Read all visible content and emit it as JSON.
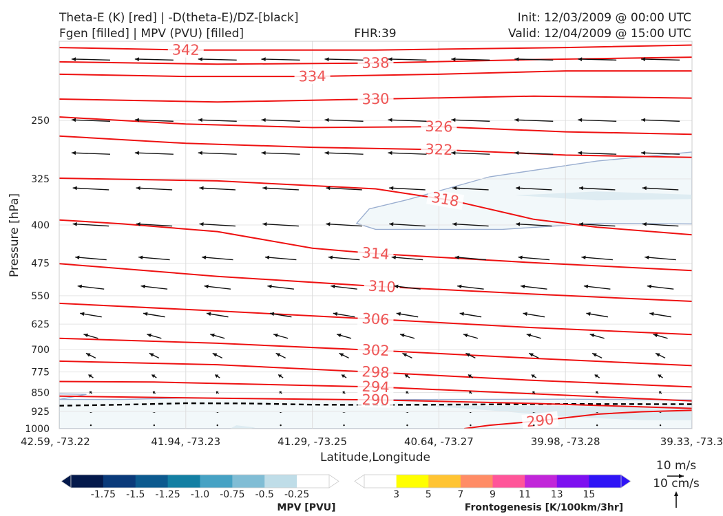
{
  "header": {
    "title_left_1": "Theta-E (K) [red] | -D(theta-E)/DZ-[black]",
    "title_left_2": "Fgen [filled] | MPV (PVU) [filled]",
    "fhr": "FHR:39",
    "init": "Init: 12/03/2009 @ 00:00 UTC",
    "valid": "Valid: 12/04/2009 @ 15:00 UTC"
  },
  "colors": {
    "theta_e": "#ee1111",
    "theta_e_label": "#ee5555",
    "mpv_outline": "#9aaed0",
    "mpv_fill_light": "#f2f8fa",
    "mpv_fill_mid": "#deecf2",
    "zero_line": "#000000",
    "wind": "#111111"
  },
  "chart_data": {
    "type": "cross-section",
    "xlabel": "Latitude,Longitude",
    "ylabel": "Pressure [hPa]",
    "x_ticks": [
      "42.59, -73.22",
      "41.94, -73.23",
      "41.29, -73.25",
      "40.64, -73.27",
      "39.98, -73.28",
      "39.33, -73.3"
    ],
    "y_ticks": [
      250,
      325,
      400,
      475,
      550,
      625,
      700,
      775,
      850,
      925,
      1000
    ],
    "ylim": [
      175,
      1000
    ],
    "y_scale": "log",
    "y_inverted": true,
    "grid": true,
    "x_gridlines_at_index": [
      1,
      2,
      3,
      4
    ],
    "theta_e_contours": [
      {
        "value": 342,
        "label": "342",
        "label_x": 0.2,
        "points": [
          [
            0,
            180
          ],
          [
            0.2,
            182
          ],
          [
            0.5,
            182
          ],
          [
            0.8,
            180
          ],
          [
            1.0,
            178
          ]
        ]
      },
      {
        "value": 338,
        "label": "338",
        "label_x": 0.5,
        "points": [
          [
            0,
            192
          ],
          [
            0.25,
            194
          ],
          [
            0.5,
            193
          ],
          [
            0.75,
            190
          ],
          [
            1.0,
            188
          ]
        ]
      },
      {
        "value": 334,
        "label": "334",
        "label_x": 0.4,
        "points": [
          [
            0,
            203
          ],
          [
            0.2,
            205
          ],
          [
            0.4,
            205
          ],
          [
            0.6,
            203
          ],
          [
            0.8,
            200
          ],
          [
            1.0,
            200
          ]
        ]
      },
      {
        "value": 330,
        "label": "330",
        "label_x": 0.5,
        "points": [
          [
            0,
            227
          ],
          [
            0.25,
            230
          ],
          [
            0.5,
            227
          ],
          [
            0.75,
            224
          ],
          [
            1.0,
            226
          ]
        ]
      },
      {
        "value": 326,
        "label": "326",
        "label_x": 0.6,
        "points": [
          [
            0,
            246
          ],
          [
            0.2,
            254
          ],
          [
            0.4,
            258
          ],
          [
            0.6,
            257
          ],
          [
            0.8,
            263
          ],
          [
            1.0,
            266
          ]
        ]
      },
      {
        "value": 322,
        "label": "322",
        "label_x": 0.6,
        "points": [
          [
            0,
            268
          ],
          [
            0.2,
            277
          ],
          [
            0.4,
            282
          ],
          [
            0.6,
            285
          ],
          [
            0.8,
            292
          ],
          [
            1.0,
            295
          ]
        ]
      },
      {
        "value": 318,
        "label": "318",
        "label_x": 0.61,
        "points": [
          [
            0,
            324
          ],
          [
            0.25,
            328
          ],
          [
            0.5,
            340
          ],
          [
            0.62,
            358
          ],
          [
            0.75,
            390
          ],
          [
            0.85,
            404
          ],
          [
            1.0,
            418
          ]
        ]
      },
      {
        "value": 314,
        "label": "314",
        "label_x": 0.5,
        "points": [
          [
            0,
            391
          ],
          [
            0.1,
            398
          ],
          [
            0.25,
            412
          ],
          [
            0.4,
            444
          ],
          [
            0.5,
            455
          ],
          [
            0.75,
            474
          ],
          [
            1.0,
            491
          ]
        ]
      },
      {
        "value": 310,
        "label": "310",
        "label_x": 0.51,
        "points": [
          [
            0,
            476
          ],
          [
            0.25,
            504
          ],
          [
            0.5,
            527
          ],
          [
            0.75,
            546
          ],
          [
            1.0,
            564
          ]
        ]
      },
      {
        "value": 306,
        "label": "306",
        "label_x": 0.5,
        "points": [
          [
            0,
            569
          ],
          [
            0.25,
            589
          ],
          [
            0.5,
            611
          ],
          [
            0.75,
            635
          ],
          [
            1.0,
            655
          ]
        ]
      },
      {
        "value": 302,
        "label": "302",
        "label_x": 0.5,
        "points": [
          [
            0,
            666
          ],
          [
            0.25,
            681
          ],
          [
            0.5,
            703
          ],
          [
            0.75,
            729
          ],
          [
            1.0,
            753
          ]
        ]
      },
      {
        "value": 298,
        "label": "298",
        "label_x": 0.5,
        "points": [
          [
            0,
            738
          ],
          [
            0.25,
            750
          ],
          [
            0.5,
            776
          ],
          [
            0.75,
            805
          ],
          [
            1.0,
            829
          ]
        ]
      },
      {
        "value": 294,
        "label": "294",
        "label_x": 0.5,
        "points": [
          [
            0,
            809
          ],
          [
            0.15,
            811
          ],
          [
            0.5,
            829
          ],
          [
            0.75,
            855
          ],
          [
            1.0,
            883
          ]
        ]
      },
      {
        "value": 290,
        "label": "290",
        "label_x": 0.5,
        "points": [
          [
            0,
            864
          ],
          [
            0.25,
            872
          ],
          [
            0.5,
            879
          ],
          [
            0.75,
            893
          ],
          [
            1.0,
            913
          ]
        ]
      },
      {
        "value": 290,
        "label": "290",
        "label_x": 0.76,
        "points": [
          [
            0.64,
            1000
          ],
          [
            0.68,
            985
          ],
          [
            0.75,
            968
          ],
          [
            0.85,
            937
          ],
          [
            0.92,
            927
          ],
          [
            1.0,
            921
          ]
        ]
      }
    ],
    "zero_line": {
      "style": "dashed",
      "points": [
        [
          0,
          902
        ],
        [
          0.1,
          898
        ],
        [
          0.2,
          892
        ],
        [
          0.3,
          893
        ],
        [
          0.4,
          898
        ],
        [
          0.5,
          899
        ],
        [
          0.6,
          898
        ],
        [
          0.8,
          895
        ],
        [
          1.0,
          896
        ]
      ]
    },
    "mpv_regions": [
      {
        "shade": "light",
        "points": [
          [
            0,
            855
          ],
          [
            0.043,
            857
          ],
          [
            0,
            877
          ],
          [
            0.1,
            877
          ],
          [
            0.2,
            871
          ],
          [
            0.3,
            873
          ],
          [
            0.4,
            877
          ],
          [
            0.5,
            878
          ],
          [
            0.6,
            877
          ],
          [
            0.8,
            876
          ],
          [
            1.0,
            879
          ],
          [
            1.0,
            1000
          ],
          [
            0,
            1000
          ]
        ]
      },
      {
        "shade": "mid",
        "points": [
          [
            0.58,
            902
          ],
          [
            0.7,
            902
          ],
          [
            0.85,
            903
          ],
          [
            1.0,
            905
          ],
          [
            1.0,
            963
          ],
          [
            0.92,
            963
          ],
          [
            0.78,
            945
          ],
          [
            0.7,
            925
          ]
        ]
      },
      {
        "shade": "light",
        "points": [
          [
            0.47,
            397
          ],
          [
            0.49,
            372
          ],
          [
            0.55,
            357
          ],
          [
            0.68,
            322
          ],
          [
            0.85,
            300
          ],
          [
            1.0,
            288
          ],
          [
            1.0,
            398
          ],
          [
            0.85,
            397
          ],
          [
            0.7,
            408
          ],
          [
            0.5,
            408
          ]
        ]
      },
      {
        "shade": "mid",
        "points": [
          [
            0.72,
            350
          ],
          [
            0.85,
            344
          ],
          [
            1.0,
            349
          ],
          [
            1.0,
            356
          ],
          [
            0.85,
            358
          ]
        ]
      },
      {
        "shade": "mid",
        "points": [
          [
            0.28,
            985
          ],
          [
            0.31,
            995
          ],
          [
            0.3,
            1000
          ],
          [
            0.27,
            1000
          ]
        ]
      }
    ],
    "wind_vectors": {
      "columns": [
        0.05,
        0.15,
        0.25,
        0.35,
        0.45,
        0.55,
        0.65,
        0.75,
        0.85,
        0.95
      ],
      "levels_hpa": [
        190,
        250,
        290,
        340,
        400,
        465,
        530,
        600,
        660,
        720,
        790,
        850,
        930,
        985
      ],
      "u_ms": [
        -16,
        -16,
        -16,
        -15,
        -15,
        -13,
        -11,
        -9,
        -6,
        -4,
        -2,
        -1,
        0,
        0
      ],
      "w_cms": [
        0.4,
        0.6,
        0.6,
        0.8,
        0.9,
        1.1,
        1.3,
        1.5,
        1.7,
        2.0,
        1.3,
        0.8,
        0.3,
        0
      ]
    },
    "reference_vectors": {
      "horizontal_label": "10 m/s",
      "vertical_label": "10 cm/s"
    }
  },
  "colorbars": {
    "mpv": {
      "title": "MPV [PVU]",
      "colors": [
        "#04194b",
        "#0a3a7a",
        "#0c5a8f",
        "#137fa3",
        "#46a2c4",
        "#80bdd5",
        "#bfdde8",
        "#ffffff"
      ],
      "ticks": [
        "-1.75",
        "-1.5",
        "-1.25",
        "-1.0",
        "-0.75",
        "-0.5",
        "-0.25"
      ]
    },
    "fgen": {
      "title": "Frontogenesis [K/100km/3hr]",
      "colors": [
        "#ffffff",
        "#ffff00",
        "#ffc433",
        "#ff8c66",
        "#ff5599",
        "#c126d9",
        "#7d10f0",
        "#2f14f6"
      ],
      "ticks": [
        "3",
        "5",
        "7",
        "9",
        "11",
        "13",
        "15"
      ]
    }
  }
}
